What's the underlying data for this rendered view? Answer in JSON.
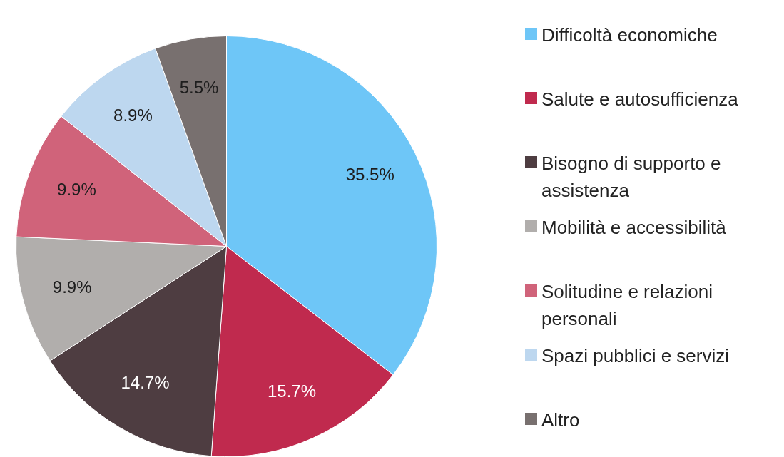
{
  "chart_data": {
    "type": "pie",
    "categories": [
      "Difficoltà economiche",
      "Salute e autosufficienza",
      "Bisogno di supporto e assistenza",
      "Mobilità e accessibilità",
      "Solitudine e relazioni personali",
      "Spazi pubblici e servizi",
      "Altro"
    ],
    "values": [
      35.5,
      15.7,
      14.7,
      9.9,
      9.9,
      8.9,
      5.5
    ],
    "value_labels": [
      "35.5%",
      "15.7%",
      "14.7%",
      "9.9%",
      "9.9%",
      "8.9%",
      "5.5%"
    ],
    "colors": [
      "#6ec6f7",
      "#c02a4e",
      "#4e3d41",
      "#b1aeac",
      "#d0637a",
      "#bdd7ef",
      "#78706f"
    ],
    "legend": "right"
  }
}
